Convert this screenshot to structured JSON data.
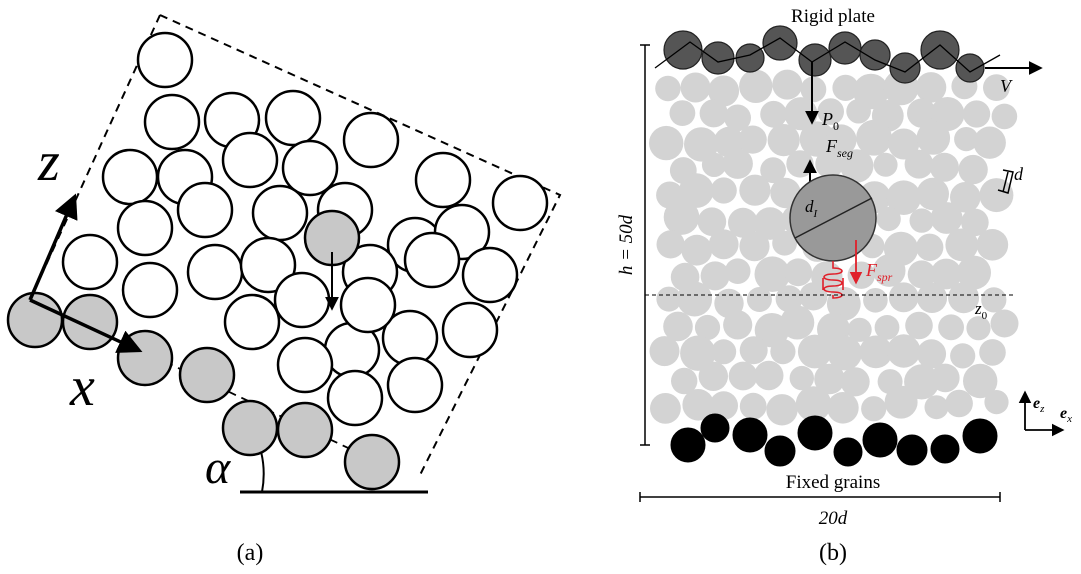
{
  "panel_a": {
    "axis_z": "z",
    "axis_x": "x",
    "angle": "α",
    "caption": "(a)"
  },
  "panel_b": {
    "top_label": "Rigid plate",
    "velocity": "V",
    "load": {
      "base": "P",
      "sub": "0"
    },
    "segregation_force": {
      "base": "F",
      "sub": "seg"
    },
    "grain_size": "d",
    "intruder_size": {
      "base": "d",
      "sub": "I"
    },
    "spring_force": {
      "base": "F",
      "sub": "spr"
    },
    "reference_height": {
      "base": "z",
      "sub": "0"
    },
    "height": "h = 50d",
    "unit_z": {
      "base": "e",
      "sub": "z"
    },
    "unit_x": {
      "base": "e",
      "sub": "x"
    },
    "bottom_label": "Fixed grains",
    "width": "20d",
    "caption": "(b)"
  }
}
